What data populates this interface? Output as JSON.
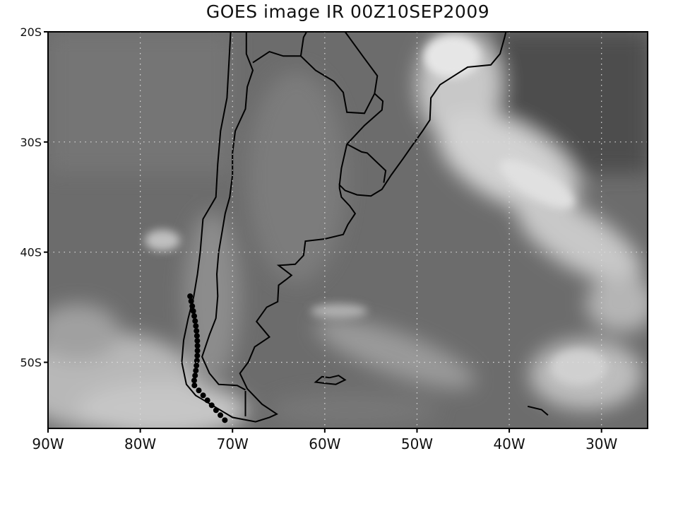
{
  "title": "GOES image IR 00Z10SEP2009",
  "map": {
    "projection": "lat-lon",
    "lon_range": [
      -90,
      -25
    ],
    "lat_range": [
      -56,
      -20
    ],
    "grid": true,
    "grid_style": "dotted",
    "colormap": "grayscale",
    "coastline_color": "#000000",
    "x_ticks": [
      {
        "value": -90,
        "label": "90W"
      },
      {
        "value": -80,
        "label": "80W"
      },
      {
        "value": -70,
        "label": "70W"
      },
      {
        "value": -60,
        "label": "60W"
      },
      {
        "value": -50,
        "label": "50W"
      },
      {
        "value": -40,
        "label": "40W"
      },
      {
        "value": -30,
        "label": "30W"
      }
    ],
    "y_ticks": [
      {
        "value": -20,
        "label": "20S"
      },
      {
        "value": -30,
        "label": "30S"
      },
      {
        "value": -40,
        "label": "40S"
      },
      {
        "value": -50,
        "label": "50S"
      }
    ]
  }
}
